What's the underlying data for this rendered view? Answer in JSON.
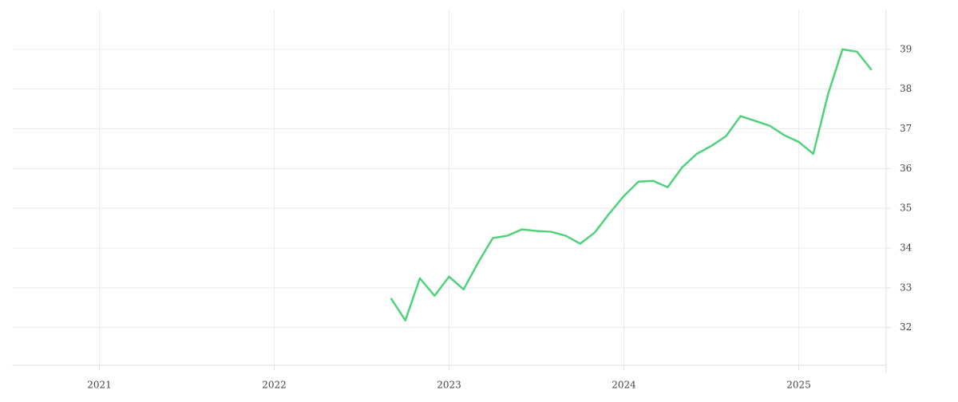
{
  "chart_data": {
    "type": "line",
    "x": [
      2022.667,
      2022.75,
      2022.833,
      2022.917,
      2023,
      2023.083,
      2023.167,
      2023.25,
      2023.333,
      2023.417,
      2023.5,
      2023.583,
      2023.667,
      2023.75,
      2023.833,
      2023.917,
      2024,
      2024.083,
      2024.167,
      2024.25,
      2024.333,
      2024.417,
      2024.5,
      2024.583,
      2024.667,
      2024.75,
      2024.833,
      2024.917,
      2025,
      2025.083,
      2025.167,
      2025.25,
      2025.333,
      2025.417
    ],
    "series": [
      {
        "color": "#52d17c",
        "values": [
          32.74,
          32.18,
          33.24,
          32.8,
          33.28,
          32.96,
          33.64,
          34.25,
          34.31,
          34.47,
          34.43,
          34.41,
          34.31,
          34.11,
          34.39,
          34.87,
          35.31,
          35.67,
          35.69,
          35.53,
          36.03,
          36.37,
          36.57,
          36.81,
          37.32,
          37.2,
          37.08,
          36.84,
          36.67,
          36.37,
          37.86,
          39.0,
          38.94,
          38.48
        ]
      }
    ],
    "xlim": [
      2020.5,
      2025.5
    ],
    "xticks": [
      2021,
      2022,
      2023,
      2024,
      2025
    ],
    "ylim": [
      31.05,
      40
    ],
    "yticks": [
      32,
      33,
      34,
      35,
      36,
      37,
      38,
      39
    ],
    "grid": true
  }
}
